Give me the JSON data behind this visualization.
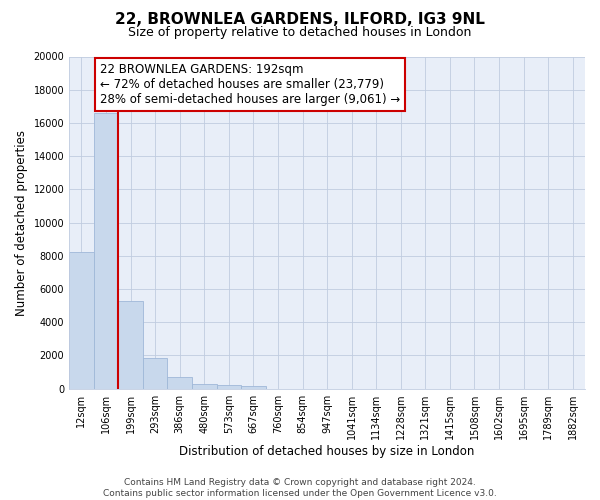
{
  "title": "22, BROWNLEA GARDENS, ILFORD, IG3 9NL",
  "subtitle": "Size of property relative to detached houses in London",
  "xlabel": "Distribution of detached houses by size in London",
  "ylabel": "Number of detached properties",
  "bar_labels": [
    "12sqm",
    "106sqm",
    "199sqm",
    "293sqm",
    "386sqm",
    "480sqm",
    "573sqm",
    "667sqm",
    "760sqm",
    "854sqm",
    "947sqm",
    "1041sqm",
    "1134sqm",
    "1228sqm",
    "1321sqm",
    "1415sqm",
    "1508sqm",
    "1602sqm",
    "1695sqm",
    "1789sqm",
    "1882sqm"
  ],
  "bar_values": [
    8200,
    16600,
    5300,
    1850,
    700,
    300,
    200,
    130,
    0,
    0,
    0,
    0,
    0,
    0,
    0,
    0,
    0,
    0,
    0,
    0,
    0
  ],
  "bar_color": "#c8d8ec",
  "bar_edge_color": "#a0b8d8",
  "plot_bg_color": "#e8eef8",
  "property_line_x": 1.5,
  "property_label": "22 BROWNLEA GARDENS: 192sqm",
  "annotation_line1": "← 72% of detached houses are smaller (23,779)",
  "annotation_line2": "28% of semi-detached houses are larger (9,061) →",
  "annotation_box_color": "#ffffff",
  "annotation_box_edge": "#cc0000",
  "property_line_color": "#cc0000",
  "ylim": [
    0,
    20000
  ],
  "yticks": [
    0,
    2000,
    4000,
    6000,
    8000,
    10000,
    12000,
    14000,
    16000,
    18000,
    20000
  ],
  "grid_color": "#c0cce0",
  "background_color": "#ffffff",
  "footer_line1": "Contains HM Land Registry data © Crown copyright and database right 2024.",
  "footer_line2": "Contains public sector information licensed under the Open Government Licence v3.0.",
  "title_fontsize": 11,
  "subtitle_fontsize": 9,
  "axis_label_fontsize": 8.5,
  "tick_fontsize": 7,
  "footer_fontsize": 6.5,
  "annotation_fontsize": 8.5
}
